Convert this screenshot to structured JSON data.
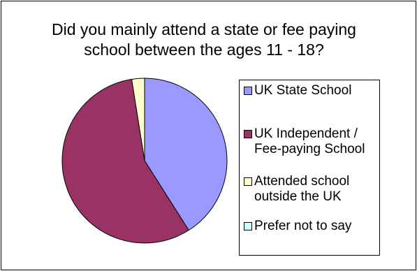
{
  "chart_data": {
    "type": "pie",
    "title": "Did you mainly attend a state or fee paying school between the ages 11 - 18?",
    "categories": [
      "UK State School",
      "UK Independent / Fee-paying School",
      "Attended school outside the UK",
      "Prefer not to say"
    ],
    "values": [
      41,
      56.5,
      2.5,
      0
    ],
    "colors": [
      "#9999ff",
      "#993366",
      "#ffffcc",
      "#ccffff"
    ],
    "legend_position": "right"
  }
}
